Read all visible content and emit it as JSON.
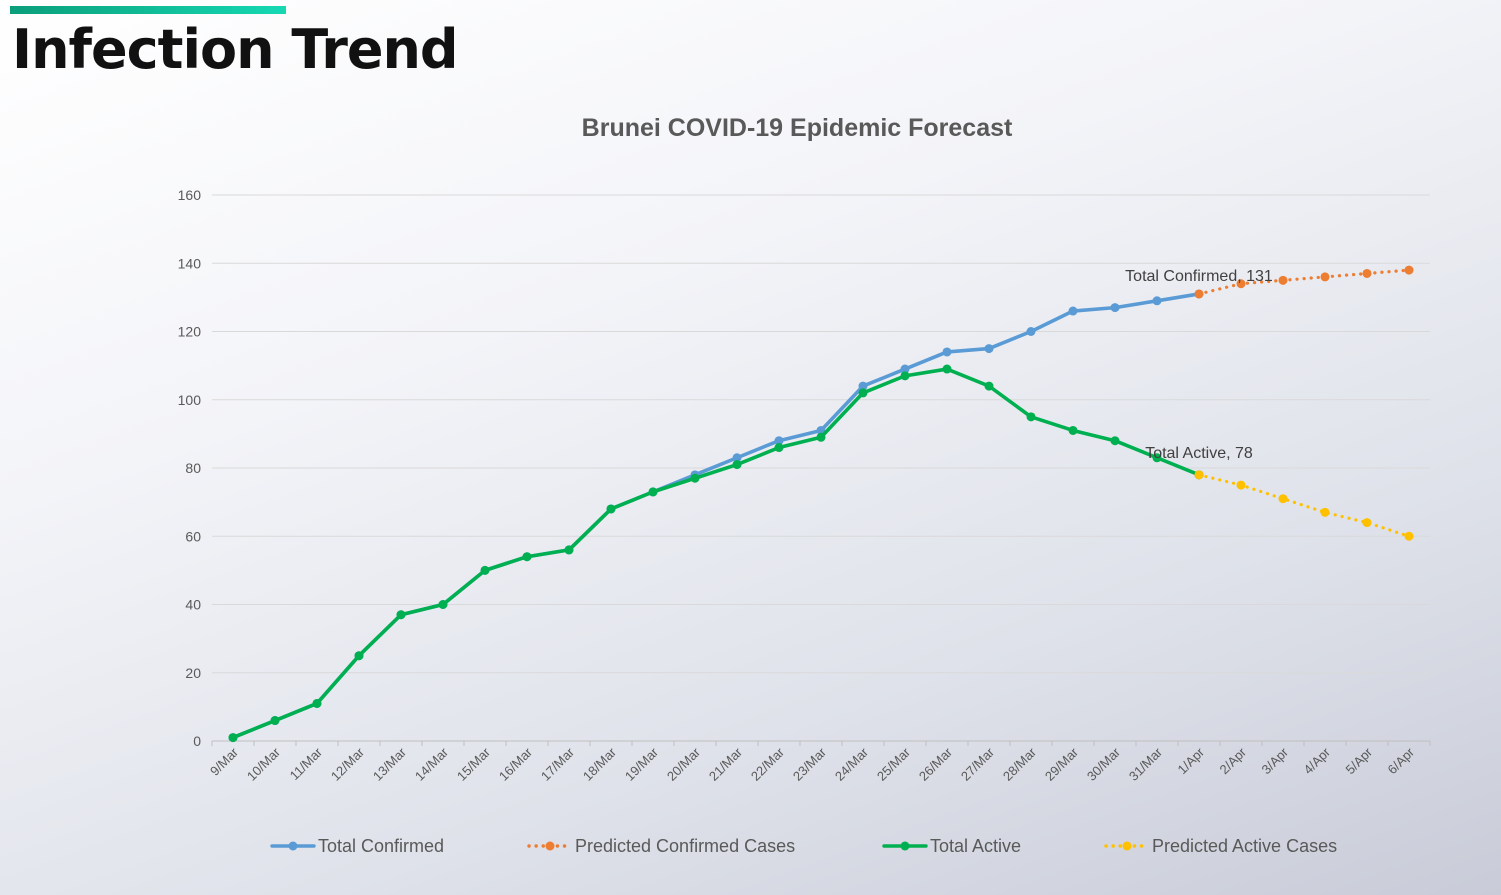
{
  "page": {
    "title": "Infection Trend"
  },
  "colors": {
    "accent": "#14c9a6",
    "confirmed": "#5b9bd5",
    "predicted_confirmed": "#ed7d31",
    "active": "#00b050",
    "predicted_active": "#ffc000",
    "grid": "#d9d9d9"
  },
  "chart_data": {
    "type": "line",
    "title": "Brunei COVID-19 Epidemic Forecast",
    "xlabel": "",
    "ylabel": "",
    "ylim": [
      0,
      160
    ],
    "yticks": [
      0,
      20,
      40,
      60,
      80,
      100,
      120,
      140,
      160
    ],
    "grid": true,
    "legend_position": "bottom",
    "categories": [
      "9/Mar",
      "10/Mar",
      "11/Mar",
      "12/Mar",
      "13/Mar",
      "14/Mar",
      "15/Mar",
      "16/Mar",
      "17/Mar",
      "18/Mar",
      "19/Mar",
      "20/Mar",
      "21/Mar",
      "22/Mar",
      "23/Mar",
      "24/Mar",
      "25/Mar",
      "26/Mar",
      "27/Mar",
      "28/Mar",
      "29/Mar",
      "30/Mar",
      "31/Mar",
      "1/Apr",
      "2/Apr",
      "3/Apr",
      "4/Apr",
      "5/Apr",
      "6/Apr"
    ],
    "series": [
      {
        "name": "Total Confirmed",
        "color_key": "confirmed",
        "style": "solid",
        "values": [
          1,
          6,
          11,
          25,
          37,
          40,
          50,
          54,
          56,
          68,
          73,
          78,
          83,
          88,
          91,
          104,
          109,
          114,
          115,
          120,
          126,
          127,
          129,
          131,
          null,
          null,
          null,
          null,
          null
        ]
      },
      {
        "name": "Predicted Confirmed Cases",
        "color_key": "predicted_confirmed",
        "style": "dotted",
        "values": [
          null,
          null,
          null,
          null,
          null,
          null,
          null,
          null,
          null,
          null,
          null,
          null,
          null,
          null,
          null,
          null,
          null,
          null,
          null,
          null,
          null,
          null,
          null,
          131,
          134,
          135,
          136,
          137,
          138
        ]
      },
      {
        "name": "Total Active",
        "color_key": "active",
        "style": "solid",
        "values": [
          1,
          6,
          11,
          25,
          37,
          40,
          50,
          54,
          56,
          68,
          73,
          77,
          81,
          86,
          89,
          102,
          107,
          109,
          104,
          95,
          91,
          88,
          83,
          78,
          null,
          null,
          null,
          null,
          null
        ]
      },
      {
        "name": "Predicted Active Cases",
        "color_key": "predicted_active",
        "style": "dotted",
        "values": [
          null,
          null,
          null,
          null,
          null,
          null,
          null,
          null,
          null,
          null,
          null,
          null,
          null,
          null,
          null,
          null,
          null,
          null,
          null,
          null,
          null,
          null,
          null,
          78,
          75,
          71,
          67,
          64,
          60
        ]
      }
    ],
    "annotations": [
      {
        "text": "Total Confirmed, 131",
        "category": "1/Apr",
        "value": 131,
        "series": "Total Confirmed"
      },
      {
        "text": "Total Active, 78",
        "category": "1/Apr",
        "value": 78,
        "series": "Total Active"
      }
    ]
  }
}
